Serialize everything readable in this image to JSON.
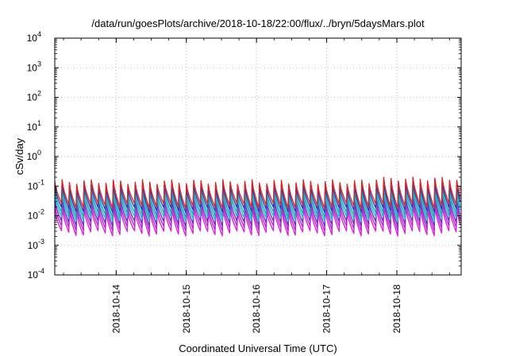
{
  "chart_data": {
    "type": "line",
    "title": "/data/run/goesPlots/archive/2018-10-18/22:00/flux/../bryn/5daysMars.plot",
    "xlabel": "Coordinated Universal Time (UTC)",
    "ylabel": "cSv/day",
    "yscale": "log",
    "ylim": [
      0.0001,
      10000
    ],
    "xlim": [
      "2018-10-13T03:00",
      "2018-10-18T22:00"
    ],
    "x_ticks": [
      "2018-10-14",
      "2018-10-15",
      "2018-10-16",
      "2018-10-17",
      "2018-10-18"
    ],
    "y_ticks": [
      {
        "mant": "10",
        "exp": "4"
      },
      {
        "mant": "10",
        "exp": "3"
      },
      {
        "mant": "10",
        "exp": "2"
      },
      {
        "mant": "10",
        "exp": "1"
      },
      {
        "mant": "10",
        "exp": "0"
      },
      {
        "mant": "10",
        "exp": "-1"
      },
      {
        "mant": "10",
        "exp": "-2"
      },
      {
        "mant": "10",
        "exp": "-3"
      },
      {
        "mant": "10",
        "exp": "-4"
      }
    ],
    "grid": true,
    "legend": "none",
    "period_hours": 2.5,
    "series": [
      {
        "color": "#d62728",
        "peak": 0.14,
        "trough": 0.022
      },
      {
        "color": "#1f3fbf",
        "peak": 0.1,
        "trough": 0.016
      },
      {
        "color": "#2aa0b0",
        "peak": 0.07,
        "trough": 0.011
      },
      {
        "color": "#17becf",
        "peak": 0.05,
        "trough": 0.008
      },
      {
        "color": "#7a2ac0",
        "peak": 0.035,
        "trough": 0.0055
      },
      {
        "color": "#b02ad0",
        "peak": 0.024,
        "trough": 0.0038
      },
      {
        "color": "#e01fd8",
        "peak": 0.016,
        "trough": 0.0026
      }
    ]
  }
}
